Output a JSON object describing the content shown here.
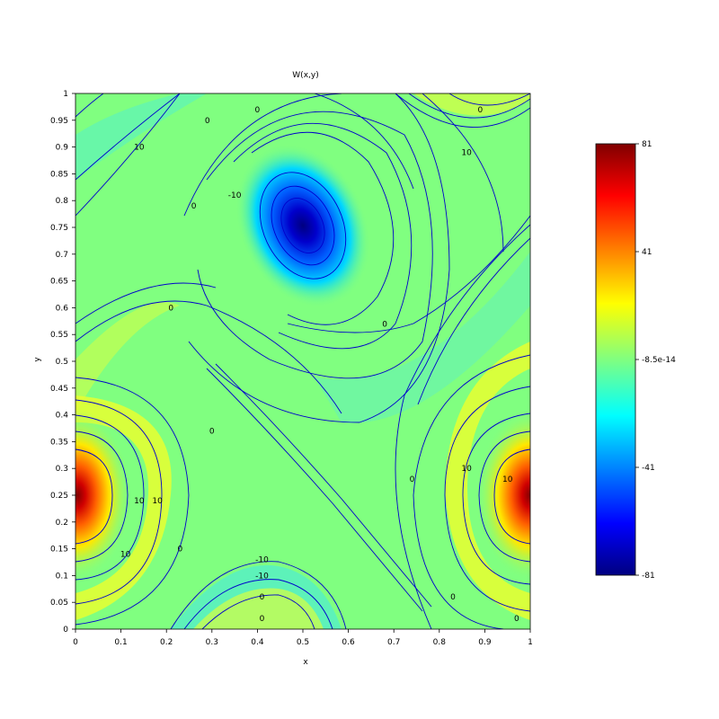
{
  "chart_data": {
    "type": "heatmap",
    "title": "W(x,y)",
    "xlabel": "x",
    "ylabel": "y",
    "xlim": [
      0,
      1
    ],
    "ylim": [
      0,
      1
    ],
    "x_ticks": [
      "0",
      "0.1",
      "0.2",
      "0.3",
      "0.4",
      "0.5",
      "0.6",
      "0.7",
      "0.8",
      "0.9",
      "1"
    ],
    "y_ticks": [
      "0",
      "0.05",
      "0.1",
      "0.15",
      "0.2",
      "0.25",
      "0.3",
      "0.35",
      "0.4",
      "0.45",
      "0.5",
      "0.55",
      "0.6",
      "0.65",
      "0.7",
      "0.75",
      "0.8",
      "0.85",
      "0.9",
      "0.95",
      "1"
    ],
    "colorbar": {
      "colormap": "jet",
      "min": -81,
      "max": 81,
      "tick_labels": [
        "81",
        "41",
        "-8.5e-14",
        "-41",
        "-81"
      ]
    },
    "extrema": [
      {
        "x": 0.5,
        "y": 0.75,
        "value": -81
      },
      {
        "x": 0.0,
        "y": 0.25,
        "value": 81
      },
      {
        "x": 1.0,
        "y": 0.25,
        "value": 81
      }
    ],
    "contour_labels": [
      {
        "text": "0",
        "x": 0.4,
        "y": 0.97
      },
      {
        "text": "0",
        "x": 0.29,
        "y": 0.95
      },
      {
        "text": "-10",
        "x": 0.35,
        "y": 0.81
      },
      {
        "text": "0",
        "x": 0.89,
        "y": 0.97
      },
      {
        "text": "10",
        "x": 0.86,
        "y": 0.89
      },
      {
        "text": "10",
        "x": 0.14,
        "y": 0.9
      },
      {
        "text": "0",
        "x": 0.26,
        "y": 0.79
      },
      {
        "text": "0",
        "x": 0.21,
        "y": 0.6
      },
      {
        "text": "10",
        "x": 0.18,
        "y": 0.24
      },
      {
        "text": "10",
        "x": 0.14,
        "y": 0.24
      },
      {
        "text": "10",
        "x": 0.11,
        "y": 0.14
      },
      {
        "text": "0",
        "x": 0.3,
        "y": 0.37
      },
      {
        "text": "0",
        "x": 0.23,
        "y": 0.15
      },
      {
        "text": "-10",
        "x": 0.41,
        "y": 0.13
      },
      {
        "text": "-10",
        "x": 0.41,
        "y": 0.1
      },
      {
        "text": "0",
        "x": 0.41,
        "y": 0.06
      },
      {
        "text": "0",
        "x": 0.41,
        "y": 0.02
      },
      {
        "text": "0",
        "x": 0.68,
        "y": 0.57
      },
      {
        "text": "0",
        "x": 0.74,
        "y": 0.28
      },
      {
        "text": "10",
        "x": 0.86,
        "y": 0.3
      },
      {
        "text": "10",
        "x": 0.95,
        "y": 0.28
      },
      {
        "text": "0",
        "x": 0.97,
        "y": 0.02
      },
      {
        "text": "0",
        "x": 0.83,
        "y": 0.06
      }
    ]
  }
}
